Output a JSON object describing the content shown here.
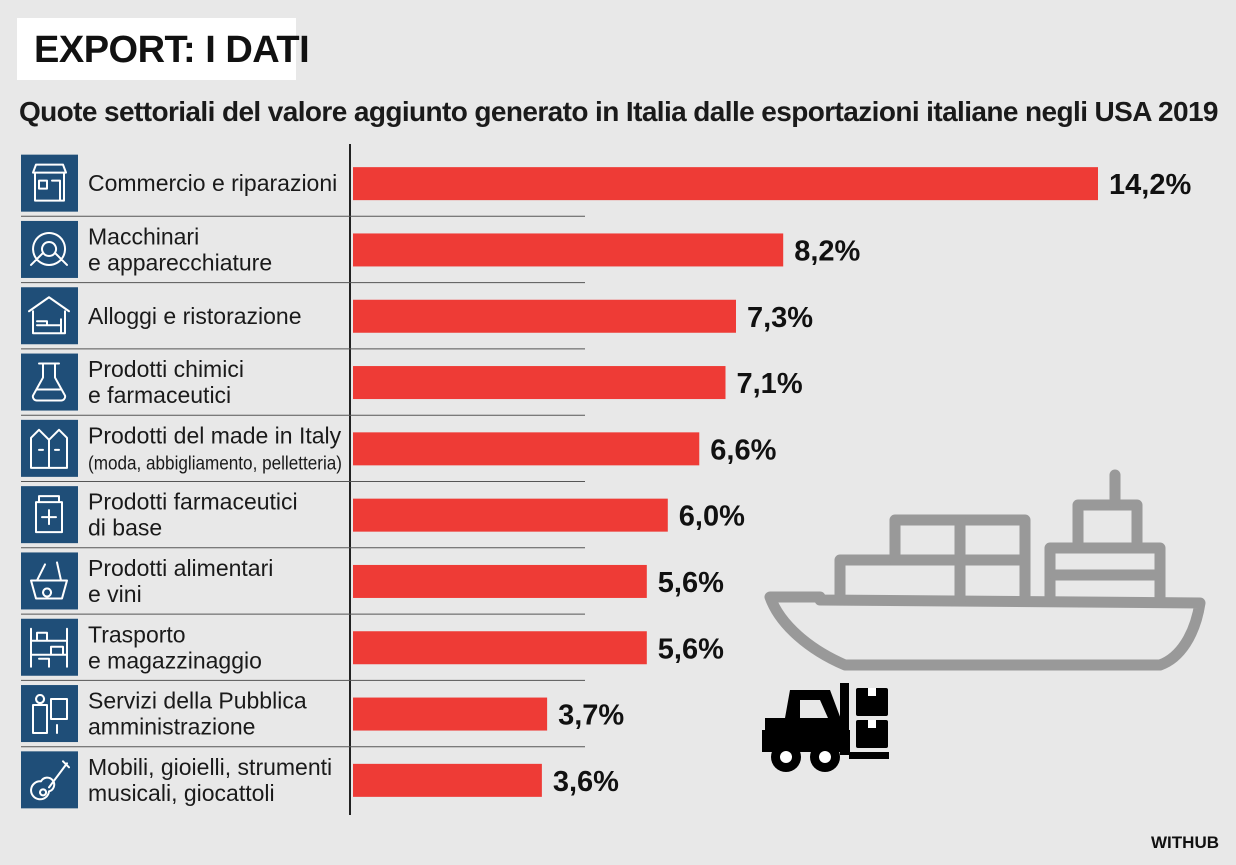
{
  "header": {
    "title": "EXPORT: I DATI",
    "subtitle": "Quote settoriali del valore aggiunto generato in Italia dalle esportazioni italiane negli USA 2019"
  },
  "source": "WITHUB",
  "colors": {
    "bar": "#ee3b36",
    "icon_bg": "#1f4e78",
    "text": "#1a1a1a",
    "ship": "#999999",
    "forklift": "#000000"
  },
  "chart_data": {
    "type": "bar",
    "orientation": "horizontal",
    "categories": [
      [
        "Commercio e riparazioni"
      ],
      [
        "Macchinari",
        "e apparecchiature"
      ],
      [
        "Alloggi e ristorazione"
      ],
      [
        "Prodotti chimici",
        "e farmaceutici"
      ],
      [
        "Prodotti del made in Italy",
        "(moda, abbigliamento, pelletteria)"
      ],
      [
        "Prodotti farmaceutici",
        "di base"
      ],
      [
        "Prodotti alimentari",
        "e vini"
      ],
      [
        "Trasporto",
        "e magazzinaggio"
      ],
      [
        "Servizi della Pubblica",
        "amministrazione"
      ],
      [
        "Mobili, gioielli, strumenti",
        "musicali, giocattoli"
      ]
    ],
    "icons": [
      "shop-icon",
      "machinery-icon",
      "hotel-icon",
      "chemistry-icon",
      "clothing-icon",
      "medicine-icon",
      "food-icon",
      "warehouse-icon",
      "public-service-icon",
      "guitar-icon"
    ],
    "values": [
      14.2,
      8.2,
      7.3,
      7.1,
      6.6,
      6.0,
      5.6,
      5.6,
      3.7,
      3.6
    ],
    "value_labels": [
      "14,2%",
      "8,2%",
      "7,3%",
      "7,1%",
      "6,6%",
      "6,0%",
      "5,6%",
      "5,6%",
      "3,7%",
      "3,6%"
    ],
    "xlim": [
      0,
      14.2
    ],
    "grid": false,
    "legend": "none"
  }
}
